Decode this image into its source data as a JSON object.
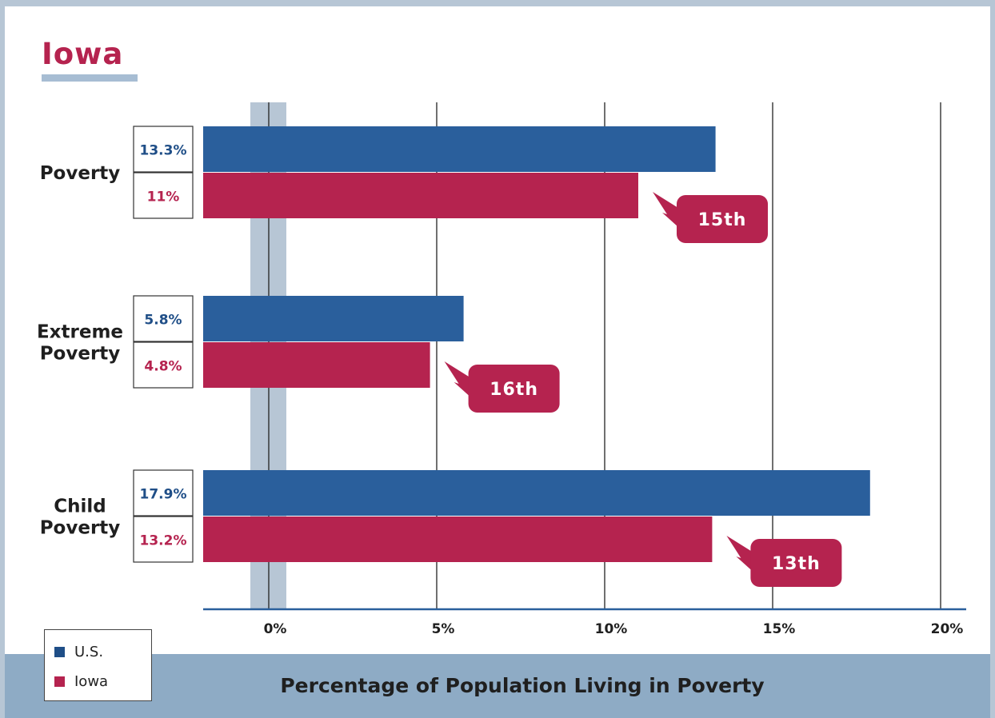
{
  "page": {
    "title": "Iowa"
  },
  "colors": {
    "us": "#2a5f9c",
    "state": "#b5234f",
    "zero_band": "#b7c6d5",
    "us_text": "#1f4e87",
    "state_text": "#b5234f"
  },
  "legend": [
    {
      "label": "U.S.",
      "color": "#1f4e87"
    },
    {
      "label": "Iowa",
      "color": "#b5234f"
    }
  ],
  "chart_data": {
    "type": "bar",
    "orientation": "horizontal",
    "title": "Iowa",
    "xlabel": "Percentage of Population Living in Poverty",
    "ylabel": "",
    "xlim": [
      -2,
      20
    ],
    "x_ticks": [
      "0%",
      "5%",
      "10%",
      "15%",
      "20%"
    ],
    "x_tick_values": [
      0,
      5,
      10,
      15,
      20
    ],
    "grid": true,
    "legend_position": "bottom-left",
    "categories": [
      "Poverty",
      "Extreme Poverty",
      "Child Poverty"
    ],
    "category_lines": [
      [
        "Poverty"
      ],
      [
        "Extreme",
        "Poverty"
      ],
      [
        "Child",
        "Poverty"
      ]
    ],
    "series": [
      {
        "name": "U.S.",
        "values": [
          13.3,
          5.8,
          17.9
        ],
        "labels": [
          "13.3%",
          "5.8%",
          "17.9%"
        ]
      },
      {
        "name": "Iowa",
        "values": [
          11,
          4.8,
          13.2
        ],
        "labels": [
          "11%",
          "4.8%",
          "13.2%"
        ]
      }
    ],
    "rank_callouts": [
      "15th",
      "16th",
      "13th"
    ]
  }
}
